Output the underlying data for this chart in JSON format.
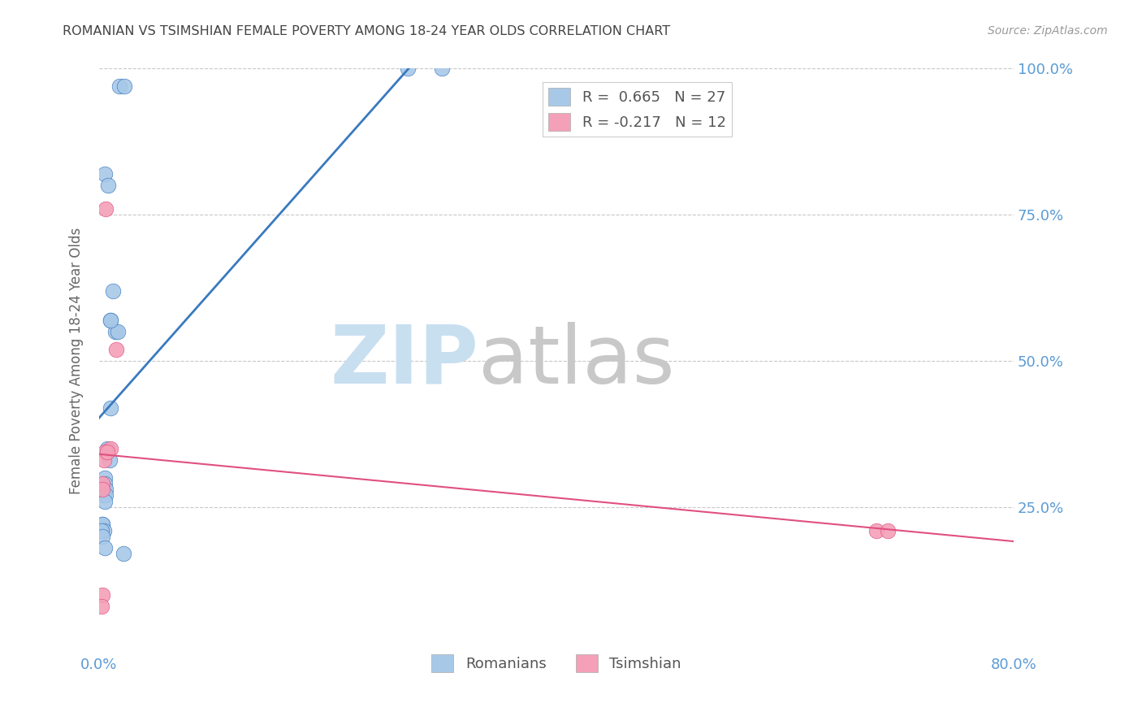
{
  "title": "ROMANIAN VS TSIMSHIAN FEMALE POVERTY AMONG 18-24 YEAR OLDS CORRELATION CHART",
  "source": "Source: ZipAtlas.com",
  "ylabel": "Female Poverty Among 18-24 Year Olds",
  "xlim": [
    0.0,
    0.8
  ],
  "ylim": [
    0.0,
    1.0
  ],
  "xticks": [
    0.0,
    0.1,
    0.2,
    0.3,
    0.4,
    0.5,
    0.6,
    0.7,
    0.8
  ],
  "xticklabels": [
    "0.0%",
    "",
    "",
    "",
    "",
    "",
    "",
    "",
    "80.0%"
  ],
  "yticks": [
    0.0,
    0.25,
    0.5,
    0.75,
    1.0
  ],
  "yticklabels_left": [
    "",
    "",
    "",
    "",
    ""
  ],
  "yticklabels_right": [
    "",
    "25.0%",
    "50.0%",
    "75.0%",
    "100.0%"
  ],
  "romanians": {
    "x": [
      0.018,
      0.022,
      0.005,
      0.008,
      0.012,
      0.01,
      0.014,
      0.016,
      0.01,
      0.01,
      0.007,
      0.009,
      0.005,
      0.005,
      0.006,
      0.004,
      0.006,
      0.005,
      0.003,
      0.003,
      0.004,
      0.002,
      0.003,
      0.005,
      0.021,
      0.27,
      0.3
    ],
    "y": [
      0.97,
      0.97,
      0.82,
      0.8,
      0.62,
      0.57,
      0.55,
      0.55,
      0.57,
      0.42,
      0.35,
      0.33,
      0.3,
      0.29,
      0.28,
      0.27,
      0.27,
      0.26,
      0.22,
      0.22,
      0.21,
      0.21,
      0.2,
      0.18,
      0.17,
      1.0,
      1.0
    ],
    "R": 0.665,
    "N": 27,
    "color": "#a8c8e8",
    "line_color": "#3a7abf"
  },
  "tsimshian": {
    "x": [
      0.006,
      0.01,
      0.015,
      0.005,
      0.004,
      0.007,
      0.003,
      0.003,
      0.003,
      0.68,
      0.69,
      0.002
    ],
    "y": [
      0.76,
      0.35,
      0.52,
      0.345,
      0.33,
      0.345,
      0.29,
      0.28,
      0.1,
      0.21,
      0.21,
      0.08
    ],
    "R": -0.217,
    "N": 12,
    "color": "#f4a0b8",
    "line_color": "#e05080"
  },
  "watermark_zip": "ZIP",
  "watermark_atlas": "atlas",
  "watermark_color_zip": "#c8dff0",
  "watermark_color_atlas": "#c8c8c8",
  "background_color": "#ffffff",
  "grid_color": "#c8c8c8",
  "title_color": "#444444",
  "axis_color": "#5b9bd5",
  "tick_color": "#888888"
}
